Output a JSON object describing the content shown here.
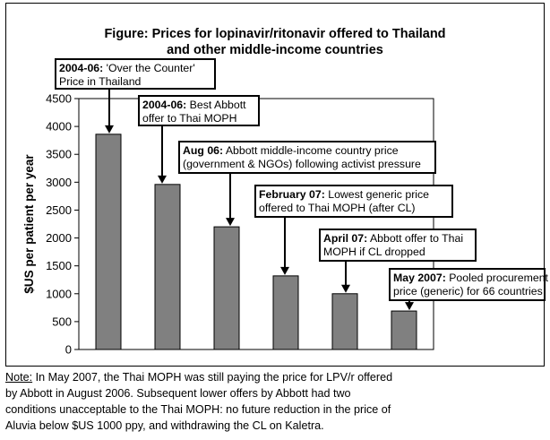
{
  "chart_data": {
    "type": "bar",
    "title_lines": [
      "Figure: Prices for lopinavir/ritonavir offered to Thailand",
      "and other middle-income countries"
    ],
    "ylabel": "$US per patient per year",
    "ylim": [
      0,
      4500
    ],
    "yticks": [
      0,
      500,
      1000,
      1500,
      2000,
      2500,
      3000,
      3500,
      4000,
      4500
    ],
    "grid": false,
    "bar_color": "#808080",
    "categories": [
      "2004-06: 'Over the Counter' Price in Thailand",
      "2004-06: Best Abbott offer to Thai MOPH",
      "Aug 06: Abbott middle-income country price (government & NGOs) following activist pressure",
      "February 07: Lowest generic price offered to Thai MOPH (after CL)",
      "April 07: Abbott offer to Thai MOPH if CL dropped",
      "May 2007: Pooled procurement price (generic) for 66 countries"
    ],
    "values": [
      3860,
      2960,
      2200,
      1320,
      1000,
      690
    ],
    "annotations": [
      {
        "bold": "2004-06:",
        "lines": [
          " 'Over the Counter'",
          "Price in Thailand"
        ]
      },
      {
        "bold": "2004-06:",
        "lines": [
          " Best Abbott",
          "offer to Thai MOPH"
        ]
      },
      {
        "bold": "Aug 06:",
        "lines": [
          " Abbott middle-income country price",
          "(government & NGOs) following activist pressure"
        ]
      },
      {
        "bold": "February 07:",
        "lines": [
          " Lowest generic price",
          "offered to Thai MOPH (after CL)"
        ]
      },
      {
        "bold": "April 07:",
        "lines": [
          " Abbott offer to Thai",
          "MOPH if CL dropped"
        ]
      },
      {
        "bold": "May 2007:",
        "lines": [
          " Pooled procurement",
          "price (generic) for 66 countries"
        ]
      }
    ]
  },
  "note": {
    "label": "Note:",
    "line1_rest": " In May 2007, the Thai MOPH was still paying the price for LPV/r offered",
    "line2": "by Abbott in August 2006. Subsequent lower offers by Abbott had two",
    "line3": "conditions unacceptable to the Thai MOPH: no future reduction in the price of",
    "line4": "Aluvia below $US 1000 ppy, and withdrawing the CL on Kaletra."
  }
}
